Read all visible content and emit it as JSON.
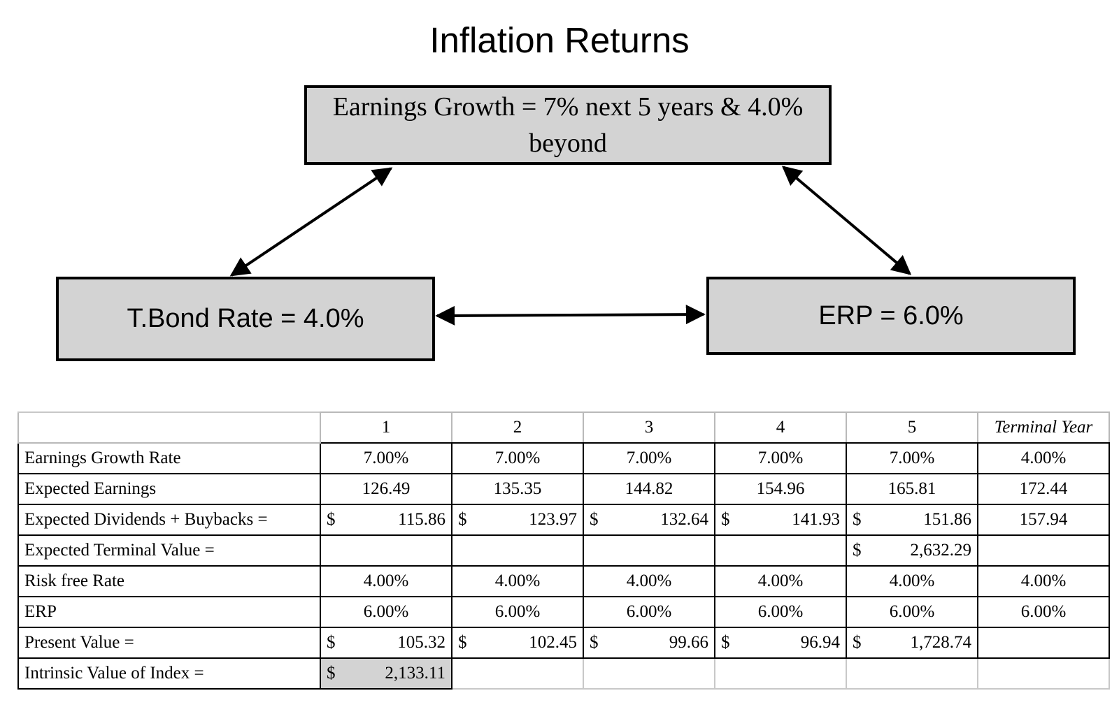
{
  "title": "Inflation Returns",
  "boxes": {
    "earnings_growth": "Earnings Growth = 7% next 5 years & 4.0% beyond",
    "tbond_rate": "T.Bond Rate = 4.0%",
    "erp": "ERP = 6.0%"
  },
  "table": {
    "headers": [
      "1",
      "2",
      "3",
      "4",
      "5",
      "Terminal Year"
    ],
    "rows": {
      "earnings_growth_rate": {
        "label": "Earnings Growth Rate",
        "values": [
          "7.00%",
          "7.00%",
          "7.00%",
          "7.00%",
          "7.00%",
          "4.00%"
        ]
      },
      "expected_earnings": {
        "label": "Expected Earnings",
        "values": [
          "126.49",
          "135.35",
          "144.82",
          "154.96",
          "165.81",
          "172.44"
        ]
      },
      "expected_dividends": {
        "label": "Expected Dividends + Buybacks =",
        "currency": "$",
        "values": [
          "115.86",
          "123.97",
          "132.64",
          "141.93",
          "151.86",
          "157.94"
        ]
      },
      "expected_terminal_value": {
        "label": "Expected Terminal Value =",
        "currency": "$",
        "value": "2,632.29"
      },
      "risk_free_rate": {
        "label": "Risk free Rate",
        "values": [
          "4.00%",
          "4.00%",
          "4.00%",
          "4.00%",
          "4.00%",
          "4.00%"
        ]
      },
      "erp": {
        "label": "ERP",
        "values": [
          "6.00%",
          "6.00%",
          "6.00%",
          "6.00%",
          "6.00%",
          "6.00%"
        ]
      },
      "present_value": {
        "label": "Present Value =",
        "currency": "$",
        "values": [
          "105.32",
          "102.45",
          "99.66",
          "96.94",
          "1,728.74"
        ]
      },
      "intrinsic_value": {
        "label": "Intrinsic Value of Index =",
        "currency": "$",
        "value": "2,133.11"
      }
    }
  }
}
